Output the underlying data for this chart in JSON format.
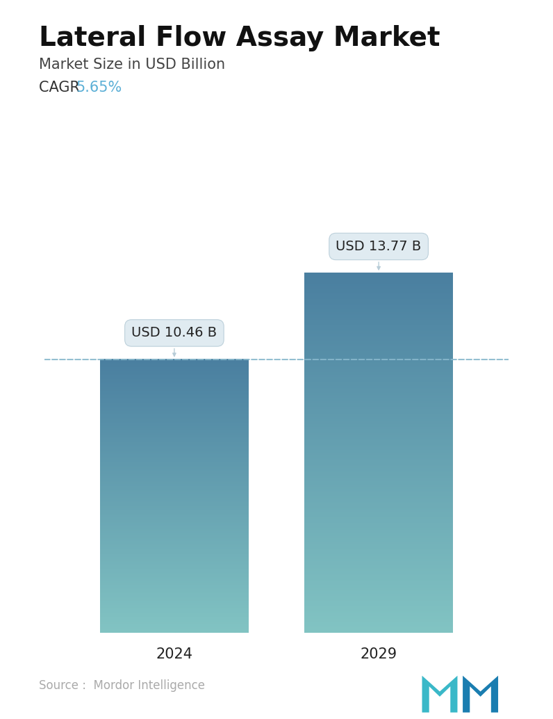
{
  "title": "Lateral Flow Assay Market",
  "subtitle": "Market Size in USD Billion",
  "cagr_label": "CAGR ",
  "cagr_value": "5.65%",
  "cagr_color": "#5bafd6",
  "categories": [
    "2024",
    "2029"
  ],
  "values": [
    10.46,
    13.77
  ],
  "labels": [
    "USD 10.46 B",
    "USD 13.77 B"
  ],
  "bar_color_top": "#4a7fa0",
  "bar_color_bottom": "#82c4c3",
  "dashed_line_color": "#88b8cc",
  "dashed_line_value": 10.46,
  "source_text": "Source :  Mordor Intelligence",
  "source_color": "#aaaaaa",
  "background_color": "#ffffff",
  "ylim": [
    0,
    16.5
  ],
  "title_fontsize": 28,
  "subtitle_fontsize": 15,
  "cagr_fontsize": 15,
  "label_fontsize": 14,
  "tick_fontsize": 15
}
